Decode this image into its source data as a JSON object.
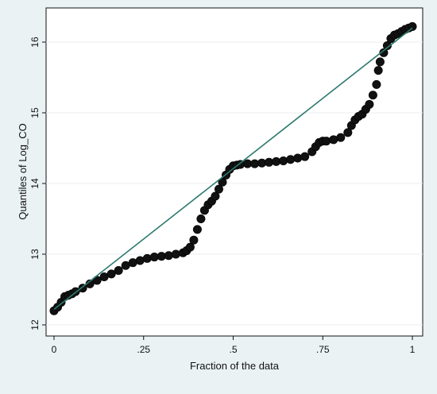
{
  "chart_data": {
    "type": "scatter",
    "title": "",
    "xlabel": "Fraction of the data",
    "ylabel": "Quantiles of Log_CO",
    "xlim": [
      0,
      1
    ],
    "ylim": [
      12.0,
      16.3
    ],
    "x_ticks": [
      {
        "value": 0,
        "label": "0"
      },
      {
        "value": 0.25,
        "label": ".25"
      },
      {
        "value": 0.5,
        "label": ".5"
      },
      {
        "value": 0.75,
        "label": ".75"
      },
      {
        "value": 1,
        "label": "1"
      }
    ],
    "y_ticks": [
      {
        "value": 12,
        "label": "12"
      },
      {
        "value": 13,
        "label": "13"
      },
      {
        "value": 14,
        "label": "14"
      },
      {
        "value": 15,
        "label": "15"
      },
      {
        "value": 16,
        "label": "16"
      }
    ],
    "grid": true,
    "series": [
      {
        "kind": "scatter",
        "marker": "circle",
        "color": "#111111",
        "x": [
          0.0,
          0.01,
          0.02,
          0.03,
          0.04,
          0.05,
          0.06,
          0.08,
          0.1,
          0.12,
          0.14,
          0.16,
          0.18,
          0.2,
          0.22,
          0.24,
          0.26,
          0.28,
          0.3,
          0.32,
          0.34,
          0.36,
          0.37,
          0.38,
          0.39,
          0.4,
          0.41,
          0.42,
          0.43,
          0.44,
          0.45,
          0.46,
          0.47,
          0.48,
          0.49,
          0.5,
          0.51,
          0.52,
          0.54,
          0.56,
          0.58,
          0.6,
          0.62,
          0.64,
          0.66,
          0.68,
          0.7,
          0.72,
          0.73,
          0.74,
          0.75,
          0.76,
          0.78,
          0.8,
          0.82,
          0.83,
          0.84,
          0.85,
          0.86,
          0.87,
          0.88,
          0.89,
          0.9,
          0.905,
          0.91,
          0.92,
          0.93,
          0.94,
          0.95,
          0.96,
          0.97,
          0.98,
          0.99,
          1.0
        ],
        "y": [
          12.2,
          12.25,
          12.32,
          12.4,
          12.42,
          12.44,
          12.47,
          12.52,
          12.58,
          12.63,
          12.68,
          12.72,
          12.77,
          12.84,
          12.88,
          12.91,
          12.94,
          12.96,
          12.97,
          12.98,
          13.0,
          13.02,
          13.05,
          13.1,
          13.2,
          13.35,
          13.5,
          13.62,
          13.7,
          13.75,
          13.82,
          13.92,
          14.02,
          14.12,
          14.2,
          14.25,
          14.26,
          14.27,
          14.28,
          14.28,
          14.29,
          14.3,
          14.31,
          14.32,
          14.34,
          14.36,
          14.38,
          14.45,
          14.52,
          14.58,
          14.6,
          14.6,
          14.62,
          14.65,
          14.72,
          14.82,
          14.9,
          14.95,
          14.98,
          15.05,
          15.12,
          15.25,
          15.4,
          15.6,
          15.72,
          15.85,
          15.95,
          16.05,
          16.1,
          16.12,
          16.15,
          16.18,
          16.2,
          16.22
        ]
      },
      {
        "kind": "line",
        "color": "#2e7a6e",
        "x": [
          0,
          1
        ],
        "y": [
          12.22,
          16.2
        ]
      }
    ]
  }
}
